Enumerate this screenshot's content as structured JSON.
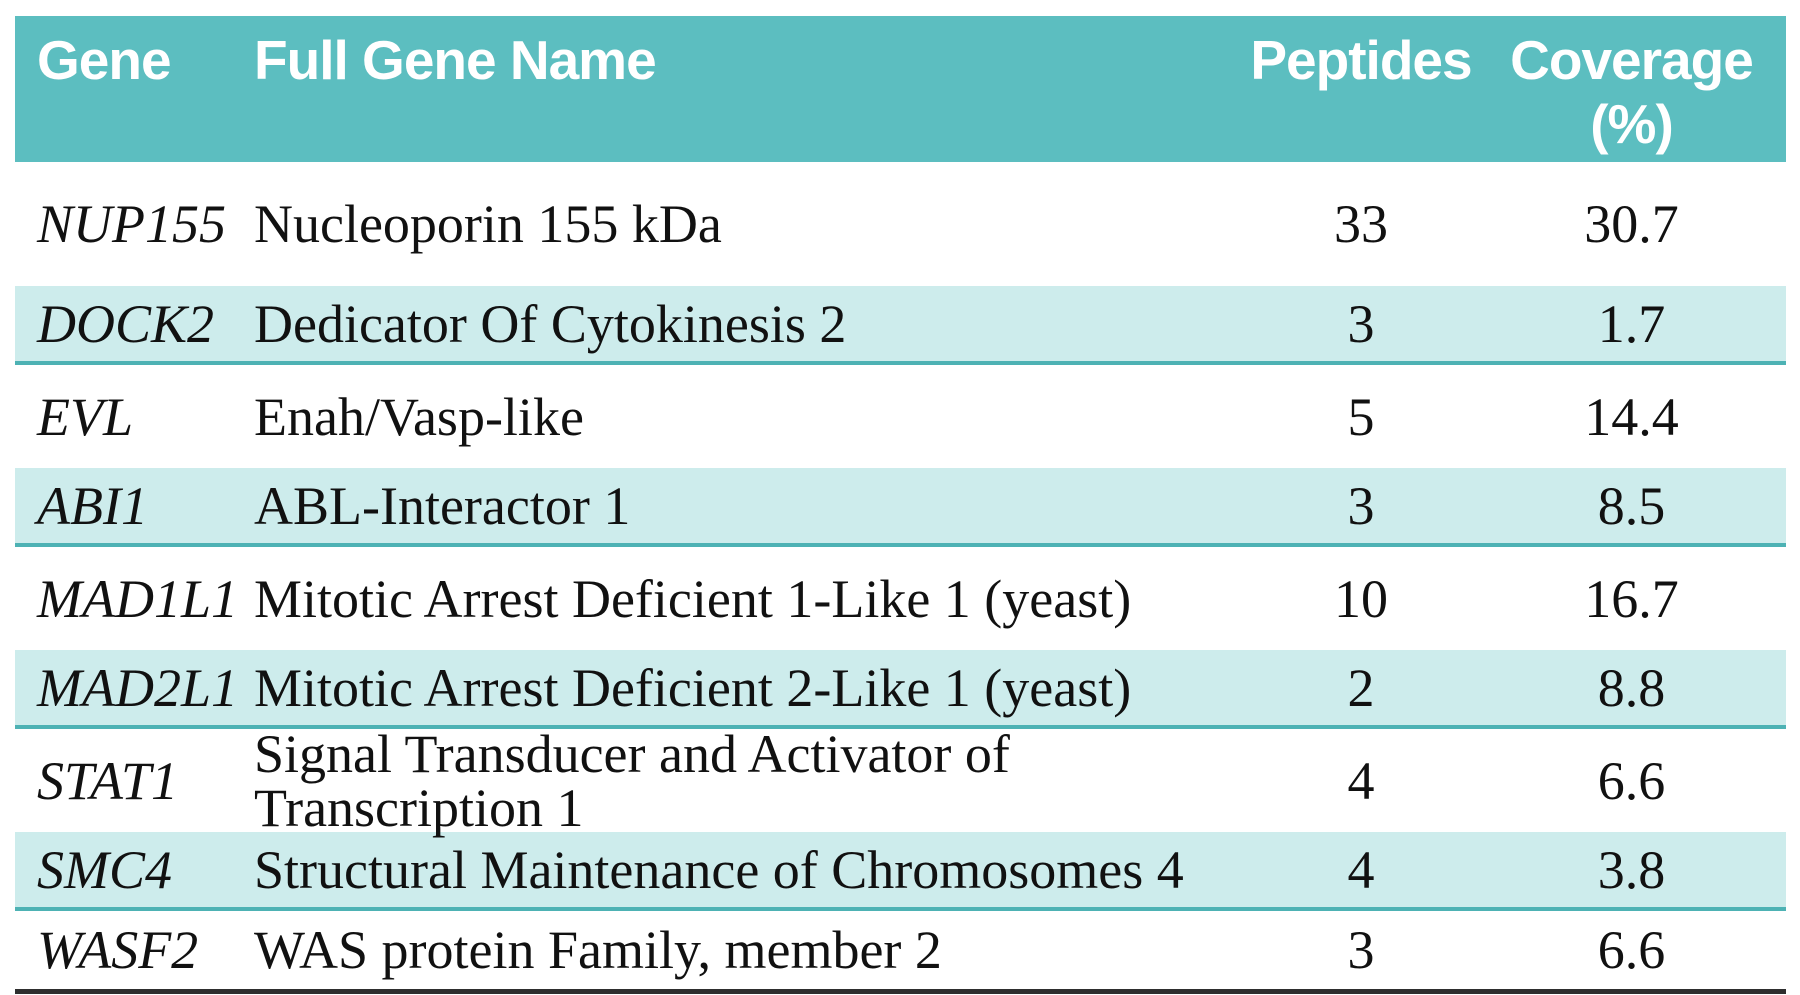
{
  "colors": {
    "header_bg": "#5cbec0",
    "row_tint_bg": "#cdecec",
    "row_separator": "#4db2b4",
    "header_text": "#ffffff",
    "body_text": "#111111",
    "bottom_rule": "#2e2e2e",
    "page_bg": "#ffffff"
  },
  "table": {
    "headers": {
      "gene": "Gene",
      "full_gene_name": "Full Gene Name",
      "peptides": "Peptides",
      "coverage_line1": "Coverage",
      "coverage_line2": "(%)"
    },
    "rows": [
      {
        "gene": "NUP155",
        "full_name": "Nucleoporin 155 kDa",
        "peptides": "33",
        "coverage": "30.7"
      },
      {
        "gene": "DOCK2",
        "full_name": "Dedicator Of Cytokinesis 2",
        "peptides": "3",
        "coverage": "1.7"
      },
      {
        "gene": "EVL",
        "full_name": "Enah/Vasp-like",
        "peptides": "5",
        "coverage": "14.4"
      },
      {
        "gene": "ABI1",
        "full_name": "ABL-Interactor 1",
        "peptides": "3",
        "coverage": "8.5"
      },
      {
        "gene": "MAD1L1",
        "full_name": "Mitotic Arrest Deficient 1-Like 1 (yeast)",
        "peptides": "10",
        "coverage": "16.7"
      },
      {
        "gene": "MAD2L1",
        "full_name": "Mitotic Arrest Deficient 2-Like 1 (yeast)",
        "peptides": "2",
        "coverage": "8.8"
      },
      {
        "gene": "STAT1",
        "full_name": "Signal Transducer and Activator of Transcription 1",
        "peptides": "4",
        "coverage": "6.6"
      },
      {
        "gene": "SMC4",
        "full_name": "Structural Maintenance of Chromosomes 4",
        "peptides": "4",
        "coverage": "3.8"
      },
      {
        "gene": "WASF2",
        "full_name": "WAS protein Family, member 2",
        "peptides": "3",
        "coverage": "6.6"
      }
    ]
  }
}
